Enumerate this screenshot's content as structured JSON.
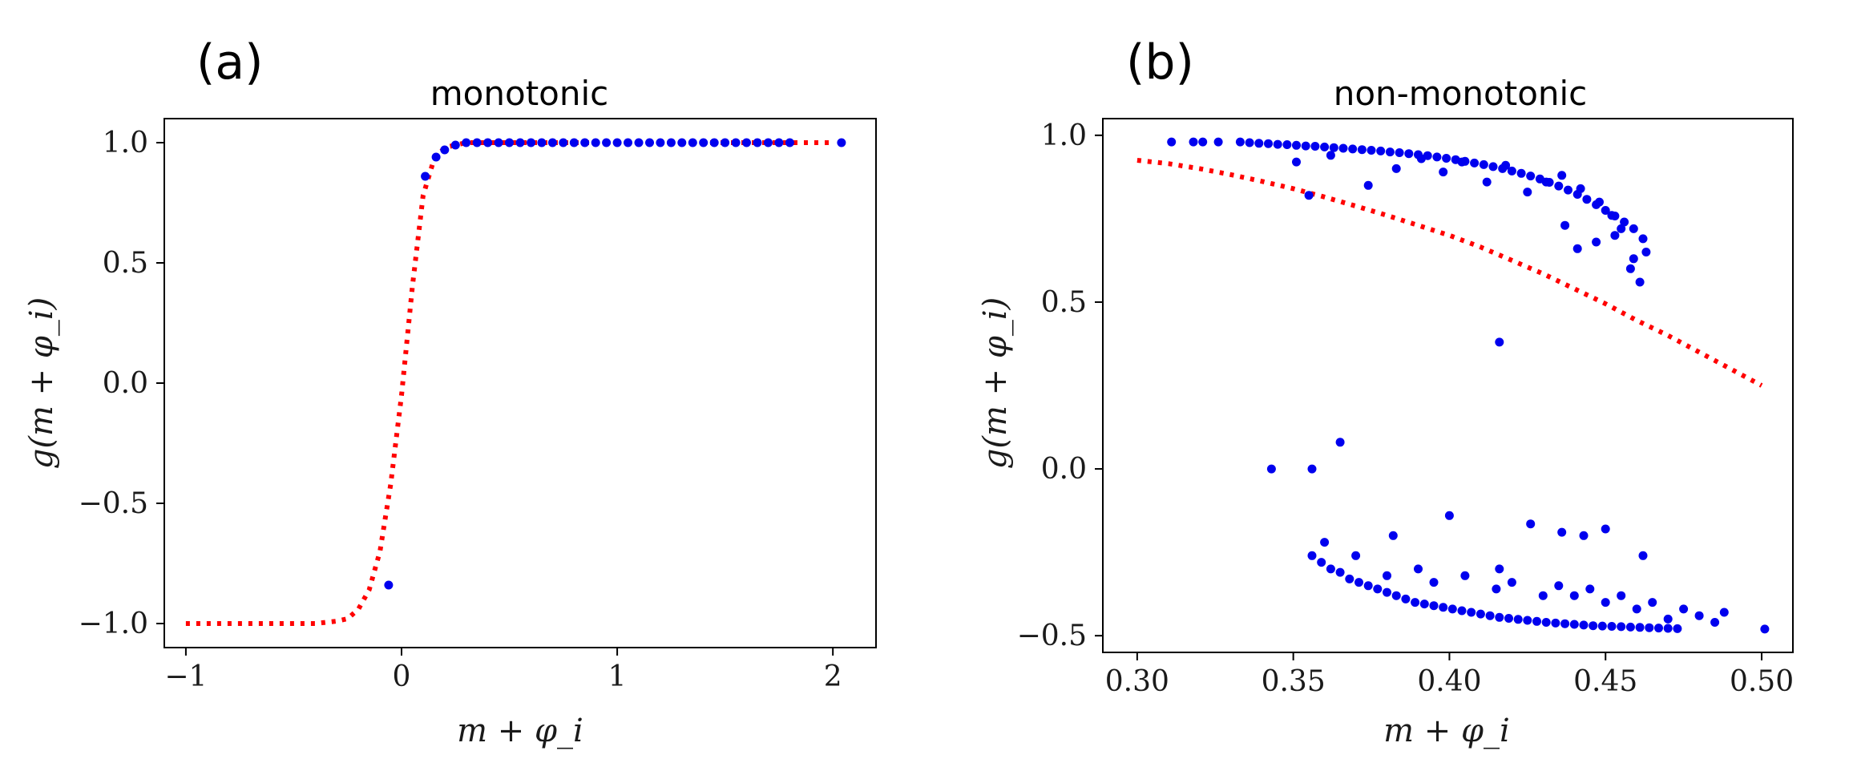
{
  "chart_data": [
    {
      "type": "scatter",
      "panel_label": "(a)",
      "title": "monotonic",
      "xlabel": "m + φ_i",
      "ylabel": "g(m + φ_i)",
      "xlim": [
        -1.1,
        2.2
      ],
      "ylim": [
        -1.1,
        1.1
      ],
      "xticks": [
        -1,
        0,
        1,
        2
      ],
      "xtick_labels": [
        "−1",
        "0",
        "1",
        "2"
      ],
      "yticks": [
        -1.0,
        -0.5,
        0.0,
        0.5,
        1.0
      ],
      "ytick_labels": [
        "−1.0",
        "−0.5",
        "0.0",
        "0.5",
        "1.0"
      ],
      "grid": false,
      "series": [
        {
          "name": "points",
          "style": "scatter",
          "color": "#0000ee",
          "x": [
            -0.06,
            0.11,
            0.16,
            0.2,
            0.25,
            0.3,
            0.35,
            0.4,
            0.45,
            0.5,
            0.55,
            0.6,
            0.65,
            0.7,
            0.75,
            0.8,
            0.85,
            0.9,
            0.95,
            1.0,
            1.05,
            1.1,
            1.15,
            1.2,
            1.25,
            1.3,
            1.35,
            1.4,
            1.45,
            1.5,
            1.55,
            1.6,
            1.65,
            1.7,
            1.75,
            1.8,
            2.04
          ],
          "y": [
            -0.84,
            0.86,
            0.94,
            0.97,
            0.99,
            1.0,
            1.0,
            1.0,
            1.0,
            1.0,
            1.0,
            1.0,
            1.0,
            1.0,
            1.0,
            1.0,
            1.0,
            1.0,
            1.0,
            1.0,
            1.0,
            1.0,
            1.0,
            1.0,
            1.0,
            1.0,
            1.0,
            1.0,
            1.0,
            1.0,
            1.0,
            1.0,
            1.0,
            1.0,
            1.0,
            1.0,
            1.0
          ]
        },
        {
          "name": "fit",
          "style": "dotted-line",
          "color": "#ff0000",
          "x": [
            -1.0,
            -0.9,
            -0.8,
            -0.7,
            -0.6,
            -0.5,
            -0.4,
            -0.3,
            -0.25,
            -0.2,
            -0.15,
            -0.1,
            -0.05,
            0.0,
            0.05,
            0.1,
            0.15,
            0.2,
            0.25,
            0.3,
            0.4,
            0.5,
            0.6,
            0.8,
            1.0,
            1.2,
            1.4,
            1.6,
            1.8,
            2.0
          ],
          "y": [
            -1.0,
            -1.0,
            -1.0,
            -1.0,
            -1.0,
            -1.0,
            -1.0,
            -0.99,
            -0.98,
            -0.94,
            -0.86,
            -0.7,
            -0.42,
            -0.05,
            0.4,
            0.78,
            0.93,
            0.98,
            0.99,
            1.0,
            1.0,
            1.0,
            1.0,
            1.0,
            1.0,
            1.0,
            1.0,
            1.0,
            1.0,
            1.0
          ]
        }
      ]
    },
    {
      "type": "scatter",
      "panel_label": "(b)",
      "title": "non-monotonic",
      "xlabel": "m + φ_i",
      "ylabel": "g(m + φ_i)",
      "xlim": [
        0.289,
        0.51
      ],
      "ylim": [
        -0.55,
        1.05
      ],
      "xticks": [
        0.3,
        0.35,
        0.4,
        0.45,
        0.5
      ],
      "xtick_labels": [
        "0.30",
        "0.35",
        "0.40",
        "0.45",
        "0.50"
      ],
      "yticks": [
        -0.5,
        0.0,
        0.5,
        1.0
      ],
      "ytick_labels": [
        "−0.5",
        "0.0",
        "0.5",
        "1.0"
      ],
      "grid": false,
      "series": [
        {
          "name": "points",
          "style": "scatter",
          "color": "#0000ee",
          "x": [
            0.311,
            0.318,
            0.321,
            0.326,
            0.333,
            0.336,
            0.339,
            0.342,
            0.345,
            0.348,
            0.351,
            0.354,
            0.357,
            0.36,
            0.363,
            0.366,
            0.369,
            0.372,
            0.375,
            0.378,
            0.381,
            0.384,
            0.387,
            0.39,
            0.393,
            0.396,
            0.399,
            0.402,
            0.405,
            0.408,
            0.411,
            0.414,
            0.417,
            0.42,
            0.423,
            0.426,
            0.429,
            0.432,
            0.435,
            0.438,
            0.441,
            0.444,
            0.447,
            0.45,
            0.453,
            0.456,
            0.459,
            0.462,
            0.351,
            0.355,
            0.362,
            0.374,
            0.383,
            0.391,
            0.398,
            0.404,
            0.412,
            0.418,
            0.425,
            0.431,
            0.436,
            0.442,
            0.448,
            0.452,
            0.455,
            0.458,
            0.461,
            0.463,
            0.437,
            0.441,
            0.447,
            0.453,
            0.459,
            0.416,
            0.343,
            0.356,
            0.365,
            0.356,
            0.359,
            0.362,
            0.365,
            0.368,
            0.371,
            0.374,
            0.377,
            0.38,
            0.383,
            0.386,
            0.389,
            0.392,
            0.395,
            0.398,
            0.401,
            0.404,
            0.407,
            0.41,
            0.413,
            0.416,
            0.419,
            0.422,
            0.425,
            0.428,
            0.431,
            0.434,
            0.437,
            0.44,
            0.443,
            0.446,
            0.449,
            0.452,
            0.455,
            0.458,
            0.461,
            0.464,
            0.467,
            0.47,
            0.473,
            0.36,
            0.37,
            0.38,
            0.39,
            0.395,
            0.405,
            0.415,
            0.42,
            0.43,
            0.435,
            0.44,
            0.445,
            0.45,
            0.455,
            0.46,
            0.465,
            0.47,
            0.475,
            0.48,
            0.485,
            0.488,
            0.501,
            0.382,
            0.4,
            0.416,
            0.426,
            0.436,
            0.443,
            0.45,
            0.462
          ],
          "y": [
            0.98,
            0.98,
            0.98,
            0.98,
            0.98,
            0.978,
            0.976,
            0.975,
            0.973,
            0.972,
            0.97,
            0.968,
            0.967,
            0.965,
            0.963,
            0.961,
            0.959,
            0.957,
            0.955,
            0.953,
            0.95,
            0.948,
            0.945,
            0.942,
            0.939,
            0.935,
            0.931,
            0.927,
            0.922,
            0.917,
            0.912,
            0.906,
            0.9,
            0.893,
            0.886,
            0.878,
            0.869,
            0.859,
            0.848,
            0.836,
            0.823,
            0.808,
            0.792,
            0.775,
            0.758,
            0.74,
            0.72,
            0.69,
            0.92,
            0.82,
            0.94,
            0.85,
            0.9,
            0.93,
            0.89,
            0.92,
            0.86,
            0.91,
            0.83,
            0.86,
            0.88,
            0.84,
            0.8,
            0.76,
            0.72,
            0.6,
            0.56,
            0.65,
            0.73,
            0.66,
            0.68,
            0.7,
            0.63,
            0.38,
            0.0,
            0.0,
            0.08,
            -0.26,
            -0.28,
            -0.3,
            -0.31,
            -0.33,
            -0.34,
            -0.35,
            -0.36,
            -0.37,
            -0.38,
            -0.39,
            -0.4,
            -0.405,
            -0.41,
            -0.415,
            -0.42,
            -0.425,
            -0.43,
            -0.435,
            -0.44,
            -0.445,
            -0.448,
            -0.451,
            -0.454,
            -0.457,
            -0.46,
            -0.462,
            -0.464,
            -0.466,
            -0.468,
            -0.47,
            -0.471,
            -0.472,
            -0.473,
            -0.474,
            -0.475,
            -0.476,
            -0.477,
            -0.478,
            -0.479,
            -0.22,
            -0.26,
            -0.32,
            -0.3,
            -0.34,
            -0.32,
            -0.36,
            -0.34,
            -0.38,
            -0.35,
            -0.38,
            -0.36,
            -0.4,
            -0.38,
            -0.42,
            -0.4,
            -0.45,
            -0.42,
            -0.44,
            -0.46,
            -0.43,
            -0.48,
            -0.2,
            -0.14,
            -0.3,
            -0.165,
            -0.19,
            -0.2,
            -0.18,
            -0.26
          ]
        },
        {
          "name": "fit",
          "style": "dotted-line",
          "color": "#ff0000",
          "x": [
            0.3,
            0.31,
            0.32,
            0.33,
            0.34,
            0.35,
            0.36,
            0.37,
            0.38,
            0.39,
            0.4,
            0.41,
            0.42,
            0.43,
            0.44,
            0.45,
            0.46,
            0.47,
            0.48,
            0.49,
            0.5
          ],
          "y": [
            0.925,
            0.915,
            0.9,
            0.882,
            0.862,
            0.84,
            0.815,
            0.788,
            0.76,
            0.73,
            0.7,
            0.665,
            0.625,
            0.585,
            0.54,
            0.495,
            0.445,
            0.4,
            0.35,
            0.3,
            0.25
          ]
        }
      ]
    }
  ]
}
